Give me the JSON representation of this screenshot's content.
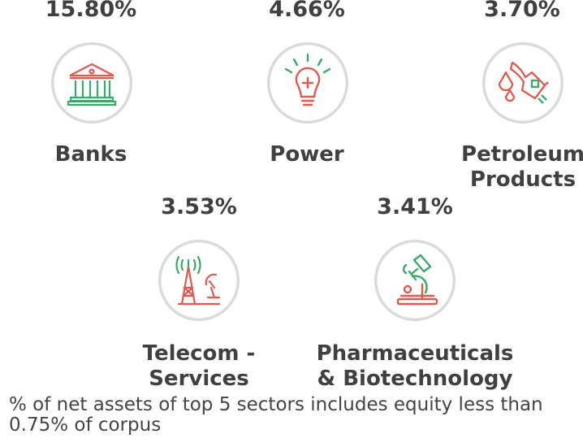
{
  "colors": {
    "green": "#3aa86a",
    "red": "#e05a4f",
    "text": "#404040",
    "circle_border": "#d9d9d9"
  },
  "sectors": [
    {
      "pct": "15.80%",
      "label": "Banks",
      "icon": "bank-building-icon"
    },
    {
      "pct": "4.66%",
      "label": "Power",
      "icon": "lightbulb-icon"
    },
    {
      "pct": "3.70%",
      "label": "Petroleum\nProducts",
      "icon": "fuel-nozzle-icon"
    },
    {
      "pct": "3.53%",
      "label": "Telecom -\nServices",
      "icon": "telecom-tower-icon"
    },
    {
      "pct": "3.41%",
      "label": "Pharmaceuticals\n& Biotechnology",
      "icon": "microscope-icon"
    }
  ],
  "footnote": "% of net assets of top 5 sectors includes equity less than\n0.75% of corpus"
}
